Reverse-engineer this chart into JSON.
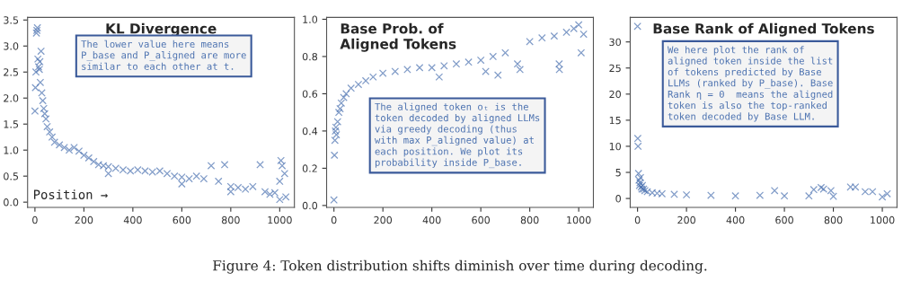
{
  "chart_data": [
    {
      "type": "scatter",
      "title": "KL Divergence",
      "xlabel": "Position →",
      "marker": "cross",
      "grid": false,
      "legend": false,
      "annotations": [
        "The lower value here means\nP_base and P_aligned are more\nsimilar to each other at t."
      ],
      "xlim": [
        -30,
        1060
      ],
      "xticks": [
        0,
        200,
        400,
        600,
        800,
        1000
      ],
      "ylim": [
        -0.1,
        3.55
      ],
      "yticks": [
        {
          "value": 0,
          "label": "0.0"
        },
        0.5,
        {
          "value": 1,
          "label": "1.0"
        },
        1.5,
        {
          "value": 2,
          "label": "2.0"
        },
        2.5,
        {
          "value": 3,
          "label": "3.0"
        },
        3.5
      ],
      "x": [
        0,
        2,
        4,
        6,
        8,
        10,
        12,
        15,
        18,
        20,
        22,
        25,
        28,
        32,
        36,
        40,
        45,
        50,
        60,
        70,
        80,
        100,
        120,
        140,
        160,
        180,
        200,
        220,
        240,
        260,
        280,
        300,
        300,
        330,
        360,
        390,
        420,
        450,
        480,
        510,
        540,
        570,
        600,
        600,
        630,
        660,
        690,
        720,
        750,
        775,
        800,
        800,
        830,
        860,
        890,
        920,
        940,
        960,
        980,
        1000,
        1000,
        1005,
        1010,
        1020,
        1025
      ],
      "series": [
        {
          "color": "#4c72b0",
          "values": [
            1.75,
            2.2,
            2.5,
            3.25,
            3.3,
            3.35,
            2.75,
            2.6,
            2.55,
            2.7,
            2.3,
            2.9,
            2.1,
            1.95,
            1.8,
            1.7,
            1.6,
            1.45,
            1.35,
            1.25,
            1.15,
            1.1,
            1.05,
            1.0,
            1.05,
            0.98,
            0.9,
            0.85,
            0.78,
            0.72,
            0.7,
            0.68,
            0.55,
            0.65,
            0.62,
            0.6,
            0.62,
            0.6,
            0.58,
            0.6,
            0.55,
            0.5,
            0.48,
            0.35,
            0.45,
            0.5,
            0.45,
            0.7,
            0.4,
            0.72,
            0.3,
            0.2,
            0.28,
            0.25,
            0.3,
            0.72,
            0.2,
            0.15,
            0.18,
            0.4,
            0.05,
            0.8,
            0.7,
            0.55,
            0.1
          ]
        }
      ]
    },
    {
      "type": "scatter",
      "title": "Base Prob. of\nAligned Tokens",
      "marker": "cross",
      "grid": false,
      "legend": false,
      "annotations": [
        "The aligned token oₜ is the\ntoken decoded by aligned LLMs\nvia greedy decoding (thus\nwith max P_aligned value) at\neach position. We plot its\nprobability inside P_base."
      ],
      "xlim": [
        -30,
        1060
      ],
      "xticks": [
        0,
        200,
        400,
        600,
        800,
        1000
      ],
      "ylim": [
        -0.01,
        1.01
      ],
      "yticks": [
        {
          "value": 0,
          "label": "0.0"
        },
        0.2,
        0.4,
        0.6,
        0.8,
        {
          "value": 1,
          "label": "1.0"
        }
      ],
      "x": [
        0,
        2,
        4,
        6,
        8,
        10,
        15,
        20,
        25,
        30,
        40,
        50,
        70,
        100,
        130,
        160,
        200,
        250,
        300,
        350,
        400,
        430,
        450,
        500,
        550,
        600,
        620,
        650,
        670,
        700,
        750,
        760,
        800,
        850,
        900,
        920,
        921,
        950,
        980,
        1000,
        1010,
        1020
      ],
      "series": [
        {
          "color": "#4c72b0",
          "values": [
            0.03,
            0.27,
            0.35,
            0.4,
            0.42,
            0.38,
            0.45,
            0.5,
            0.52,
            0.55,
            0.58,
            0.6,
            0.63,
            0.65,
            0.67,
            0.69,
            0.71,
            0.72,
            0.73,
            0.74,
            0.74,
            0.69,
            0.75,
            0.76,
            0.77,
            0.78,
            0.72,
            0.8,
            0.7,
            0.82,
            0.76,
            0.73,
            0.88,
            0.9,
            0.91,
            0.76,
            0.73,
            0.93,
            0.95,
            0.97,
            0.82,
            0.92
          ]
        }
      ]
    },
    {
      "type": "scatter",
      "title": "Base Rank of Aligned Tokens",
      "marker": "cross",
      "grid": false,
      "legend": false,
      "annotations": [
        "We here plot the rank of\naligned token inside the list\nof tokens predicted by Base\nLLMs (ranked by P_base). Base\nRank η = 0  means the aligned\ntoken is also the top-ranked\ntoken decoded by Base LLM.",
        "Figure 4: Token distribution shifts diminish over time during decoding."
      ],
      "xlim": [
        -30,
        1060
      ],
      "xticks": [
        0,
        200,
        400,
        600,
        800,
        1000
      ],
      "ylim": [
        -1.7,
        34.7
      ],
      "yticks": [
        0,
        5,
        10,
        15,
        20,
        25,
        30
      ],
      "x": [
        0,
        1,
        2,
        4,
        6,
        8,
        10,
        12,
        15,
        18,
        20,
        25,
        30,
        40,
        60,
        80,
        100,
        150,
        200,
        300,
        400,
        500,
        560,
        600,
        700,
        720,
        750,
        760,
        790,
        800,
        870,
        890,
        930,
        960,
        1000,
        1020
      ],
      "series": [
        {
          "color": "#4c72b0",
          "values": [
            33,
            11.5,
            10,
            4.8,
            3.5,
            2.5,
            3,
            4,
            2.2,
            1.8,
            2.5,
            1.8,
            1.5,
            1.3,
            1.1,
            1.0,
            0.9,
            0.8,
            0.7,
            0.6,
            0.5,
            0.6,
            1.5,
            0.5,
            0.5,
            1.7,
            2.1,
            1.8,
            1.5,
            0.4,
            2.2,
            2.2,
            1.3,
            1.3,
            0.3,
            0.9
          ]
        }
      ]
    }
  ]
}
